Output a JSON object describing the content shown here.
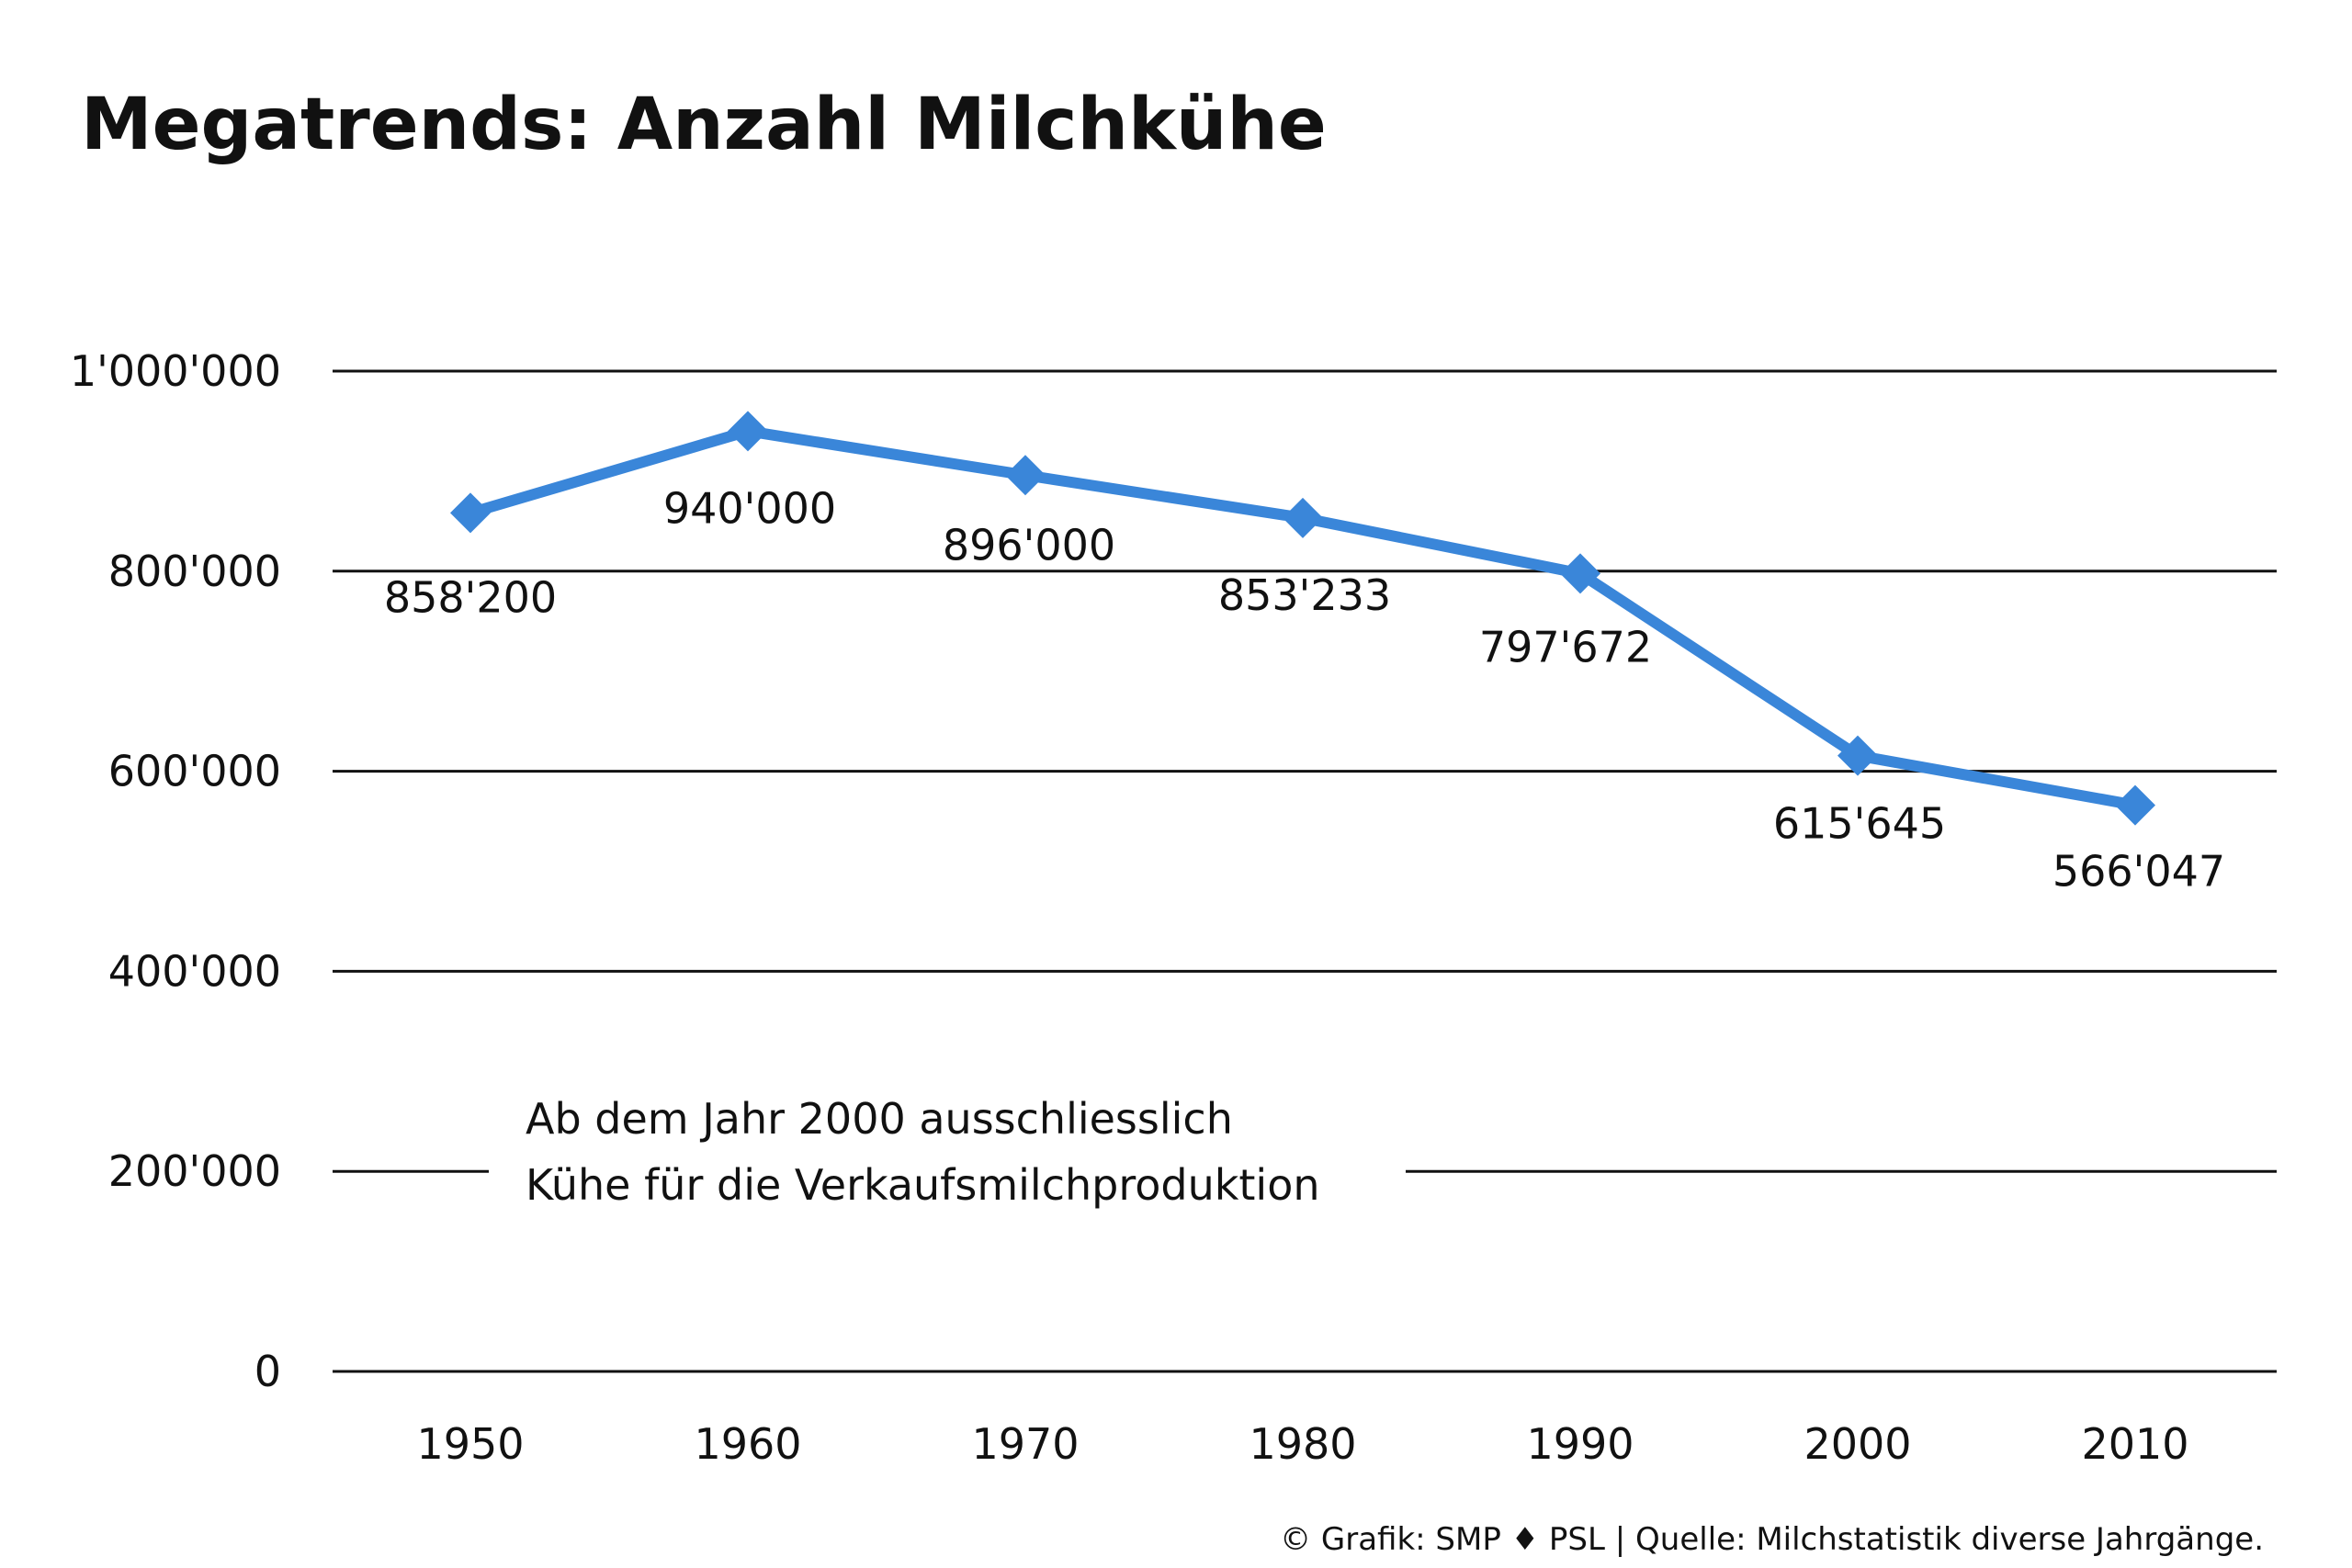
{
  "chart_data": {
    "type": "line",
    "title": "Megatrends: Anzahl Milchkühe",
    "categories": [
      "1950",
      "1960",
      "1970",
      "1980",
      "1990",
      "2000",
      "2010"
    ],
    "values": [
      858200,
      940000,
      896000,
      853233,
      797672,
      615645,
      566047
    ],
    "value_labels": [
      "858'200",
      "940'000",
      "896'000",
      "853'233",
      "797'672",
      "615'645",
      "566'047"
    ],
    "ylim": [
      0,
      1000000
    ],
    "yticks": [
      0,
      200000,
      400000,
      600000,
      800000,
      1000000
    ],
    "ytick_labels": [
      "0",
      "200'000",
      "400'000",
      "600'000",
      "800'000",
      "1'000'000"
    ],
    "xlabel": "",
    "ylabel": "",
    "grid": true,
    "legend": "none",
    "line_color": "#3A86D9",
    "marker": "diamond",
    "annotation": {
      "line1": "Ab dem Jahr 2000 ausschliesslich",
      "line2": "Kühe für die Verkaufsmilchproduktion"
    },
    "source": "© Grafik: SMP ♦ PSL | Quelle: Milchstatistik diverse Jahrgänge."
  }
}
